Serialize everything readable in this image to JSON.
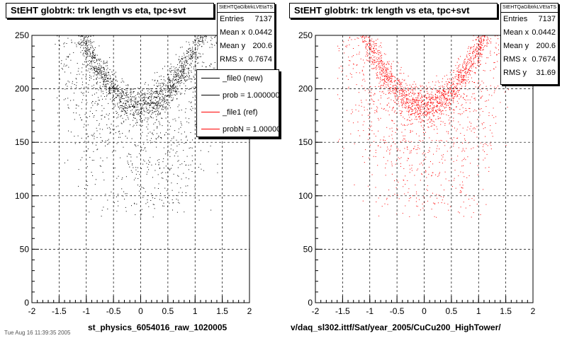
{
  "pads": [
    {
      "title": "StEHT globtrk: trk length vs eta, tpc+svt",
      "stats": {
        "name": "StEHTQaGlbtrkLVEtaTS",
        "rows": [
          {
            "label": "Entries",
            "value": "7137"
          },
          {
            "label": "Mean x",
            "value": "0.0442"
          },
          {
            "label": "Mean y",
            "value": "200.6"
          },
          {
            "label": "RMS x",
            "value": "0.7674"
          }
        ]
      },
      "legend": [
        {
          "label": "_file0 (new)",
          "color": "#000000"
        },
        {
          "label": "prob = 1.000000",
          "color": "#000000"
        },
        {
          "label": "_file1 (ref)",
          "color": "#ff0000"
        },
        {
          "label": "probN = 1.000000",
          "color": "#ff0000"
        }
      ],
      "xlabel": "st_physics_6054016_raw_1020005",
      "marker_color": "#000000"
    },
    {
      "title": "StEHT globtrk: trk length vs eta, tpc+svt",
      "stats": {
        "name": "StEHTQaGlbtrkLVEtaTS",
        "rows": [
          {
            "label": "Entries",
            "value": "7137"
          },
          {
            "label": "Mean x",
            "value": "0.0442"
          },
          {
            "label": "Mean y",
            "value": "200.6"
          },
          {
            "label": "RMS x",
            "value": "0.7674"
          },
          {
            "label": "RMS y",
            "value": "31.69"
          }
        ]
      },
      "xlabel": "v/daq_sl302.ittf/Sat/year_2005/CuCu200_HighTower/",
      "marker_color": "#ff0000"
    }
  ],
  "date_stamp": "Tue Aug 16 11:39:35 2005",
  "chart_data": [
    {
      "type": "scatter",
      "title": "StEHT globtrk: trk length vs eta, tpc+svt",
      "xlabel": "st_physics_6054016_raw_1020005",
      "ylabel": "",
      "xlim": [
        -2,
        2
      ],
      "ylim": [
        0,
        250
      ],
      "x_ticks": [
        "-2",
        "-1.5",
        "-1",
        "-0.5",
        "0",
        "0.5",
        "1",
        "1.5",
        "2"
      ],
      "y_ticks": [
        "0",
        "50",
        "100",
        "150",
        "200",
        "250"
      ],
      "grid": true,
      "entries": 7137,
      "mean_x": 0.0442,
      "mean_y": 200.6,
      "rms_x": 0.7674,
      "band": {
        "description": "track length vs eta, U-shaped",
        "eta_range": [
          -1.6,
          1.6
        ],
        "center_length_at_eta0": 185,
        "length_at_eta_pm1": 240
      },
      "series": [
        {
          "name": "_file0 (new)",
          "color": "#000000"
        }
      ]
    },
    {
      "type": "scatter",
      "title": "StEHT globtrk: trk length vs eta, tpc+svt",
      "xlabel": "v/daq_sl302.ittf/Sat/year_2005/CuCu200_HighTower/",
      "ylabel": "",
      "xlim": [
        -2,
        2
      ],
      "ylim": [
        0,
        250
      ],
      "x_ticks": [
        "-2",
        "-1.5",
        "-1",
        "-0.5",
        "0",
        "0.5",
        "1",
        "1.5",
        "2"
      ],
      "y_ticks": [
        "0",
        "50",
        "100",
        "150",
        "200",
        "250"
      ],
      "grid": true,
      "entries": 7137,
      "mean_x": 0.0442,
      "mean_y": 200.6,
      "rms_x": 0.7674,
      "rms_y": 31.69,
      "band": {
        "description": "track length vs eta, U-shaped",
        "eta_range": [
          -1.6,
          1.6
        ],
        "center_length_at_eta0": 185,
        "length_at_eta_pm1": 240
      },
      "series": [
        {
          "name": "_file1 (ref)",
          "color": "#ff0000"
        }
      ]
    }
  ]
}
